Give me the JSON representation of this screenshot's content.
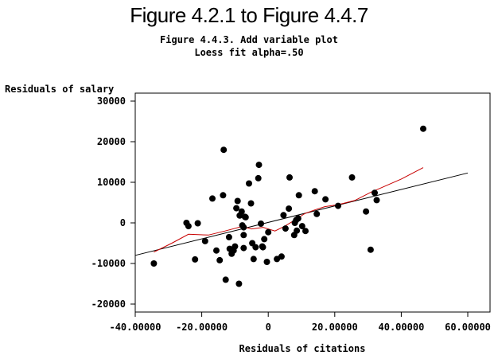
{
  "page_title": "Figure 4.2.1 to Figure 4.4.7",
  "subtitle_line1": "Figure 4.4.3. Add variable plot",
  "subtitle_line2": "Loess fit alpha=.50",
  "chart_data": {
    "type": "scatter",
    "xlabel": "Residuals of citations",
    "ylabel": "Residuals of salary",
    "xlim": [
      -40,
      60
    ],
    "ylim": [
      -20000,
      30000
    ],
    "x_ticks": [
      -40,
      -20,
      0,
      20,
      40,
      60
    ],
    "x_tick_labels": [
      "-40.00000",
      "-20.00000",
      "0",
      "20.00000",
      "40.00000",
      "60.00000"
    ],
    "y_ticks": [
      -20000,
      -10000,
      0,
      10000,
      20000,
      30000
    ],
    "y_tick_labels": [
      "-20000",
      "-10000",
      "0",
      "10000",
      "20000",
      "30000"
    ],
    "grid": false,
    "series": [
      {
        "kind": "points",
        "color": "#000000",
        "points": [
          [
            -34.4,
            -10000
          ],
          [
            -24.6,
            0
          ],
          [
            -24.0,
            -800
          ],
          [
            -22.0,
            -9000
          ],
          [
            -21.2,
            -100
          ],
          [
            -19.0,
            -4500
          ],
          [
            -16.8,
            6000
          ],
          [
            -15.6,
            -6800
          ],
          [
            -14.6,
            -9200
          ],
          [
            -13.6,
            6800
          ],
          [
            -13.4,
            18000
          ],
          [
            -12.8,
            -14000
          ],
          [
            -11.8,
            -3500
          ],
          [
            -11.6,
            -6400
          ],
          [
            -11.0,
            -7600
          ],
          [
            -10.4,
            -6800
          ],
          [
            -10.0,
            -5800
          ],
          [
            -9.6,
            3600
          ],
          [
            -9.2,
            5400
          ],
          [
            -8.8,
            -15000
          ],
          [
            -8.6,
            1800
          ],
          [
            -8.0,
            2800
          ],
          [
            -7.8,
            -600
          ],
          [
            -7.4,
            -6200
          ],
          [
            -7.4,
            -3000
          ],
          [
            -7.4,
            -1100
          ],
          [
            -7.0,
            1500
          ],
          [
            -6.8,
            1400
          ],
          [
            -5.8,
            9700
          ],
          [
            -5.2,
            4800
          ],
          [
            -4.8,
            -5000
          ],
          [
            -4.4,
            -8900
          ],
          [
            -3.8,
            -6000
          ],
          [
            -3.0,
            11000
          ],
          [
            -2.8,
            14300
          ],
          [
            -2.2,
            -200
          ],
          [
            -1.8,
            -5800
          ],
          [
            -1.6,
            -6000
          ],
          [
            -1.2,
            -4000
          ],
          [
            -0.4,
            -9600
          ],
          [
            0.0,
            -2300
          ],
          [
            2.6,
            -8900
          ],
          [
            4.0,
            -8300
          ],
          [
            4.6,
            1900
          ],
          [
            5.2,
            -1400
          ],
          [
            6.2,
            3500
          ],
          [
            6.4,
            11200
          ],
          [
            7.8,
            -3000
          ],
          [
            8.0,
            0
          ],
          [
            8.4,
            700
          ],
          [
            8.6,
            -1900
          ],
          [
            9.0,
            1100
          ],
          [
            9.2,
            6800
          ],
          [
            10.2,
            -800
          ],
          [
            11.2,
            -2000
          ],
          [
            14.0,
            7800
          ],
          [
            14.6,
            2200
          ],
          [
            17.2,
            5800
          ],
          [
            21.0,
            4200
          ],
          [
            25.2,
            11200
          ],
          [
            29.4,
            2800
          ],
          [
            30.8,
            -6600
          ],
          [
            32.0,
            7400
          ],
          [
            32.6,
            5600
          ],
          [
            46.6,
            23200
          ]
        ]
      },
      {
        "kind": "line",
        "name": "",
        "color": "#000000",
        "points": [
          [
            -40,
            -8000
          ],
          [
            60,
            12300
          ]
        ]
      },
      {
        "kind": "line",
        "name": "",
        "color": "#c80000",
        "points": [
          [
            -34.4,
            -7200
          ],
          [
            -29,
            -5000
          ],
          [
            -24,
            -2800
          ],
          [
            -18,
            -3000
          ],
          [
            -13,
            -2000
          ],
          [
            -8,
            -900
          ],
          [
            -5,
            -1500
          ],
          [
            -1.5,
            -1100
          ],
          [
            2,
            -2000
          ],
          [
            5,
            -800
          ],
          [
            8,
            700
          ],
          [
            11,
            2300
          ],
          [
            14,
            3200
          ],
          [
            17,
            4000
          ],
          [
            21,
            4500
          ],
          [
            26,
            5500
          ],
          [
            31,
            7600
          ],
          [
            33,
            8300
          ],
          [
            40,
            10800
          ],
          [
            46.6,
            13600
          ]
        ]
      }
    ]
  }
}
